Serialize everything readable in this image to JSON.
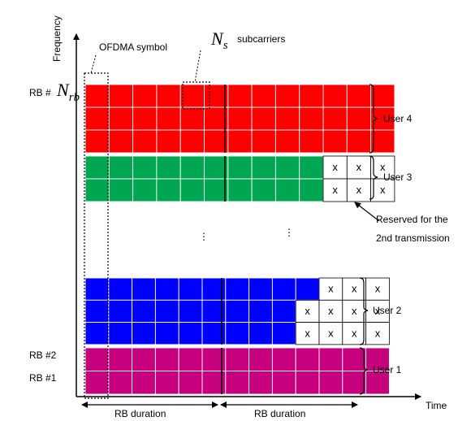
{
  "axes": {
    "y_label": "Frequency",
    "x_label": "Time"
  },
  "annotations": {
    "ofdma_symbol": "OFDMA symbol",
    "ns_symbol": "N",
    "ns_sub": "s",
    "ns_text": "subcarriers",
    "rb_prefix_top": "RB #",
    "nrb_symbol": "N",
    "nrb_sub": "rb",
    "rb2": "RB #2",
    "rb1": "RB #1",
    "reserved_line1": "Reserved for the",
    "reserved_line2": "2nd transmission",
    "rb_duration_1": "RB duration",
    "rb_duration_2": "RB duration",
    "reserved_mark": "x",
    "vdots": "⋮"
  },
  "users": [
    {
      "name": "User 4",
      "color": "#ff0000",
      "rows": 3,
      "filled_per_row": [
        13,
        13,
        13
      ]
    },
    {
      "name": "User 3",
      "color": "#00a651",
      "rows": 2,
      "filled_per_row": [
        10,
        10
      ]
    },
    {
      "name": "User 2",
      "color": "#0000ff",
      "rows": 3,
      "filled_per_row": [
        10,
        9,
        9
      ]
    },
    {
      "name": "User 1",
      "color": "#c7007d",
      "rows": 2,
      "filled_per_row": [
        13,
        13
      ]
    }
  ],
  "reserved_per_row": {
    "User 3": [
      3,
      3
    ],
    "User 2": [
      3,
      4,
      4
    ]
  }
}
